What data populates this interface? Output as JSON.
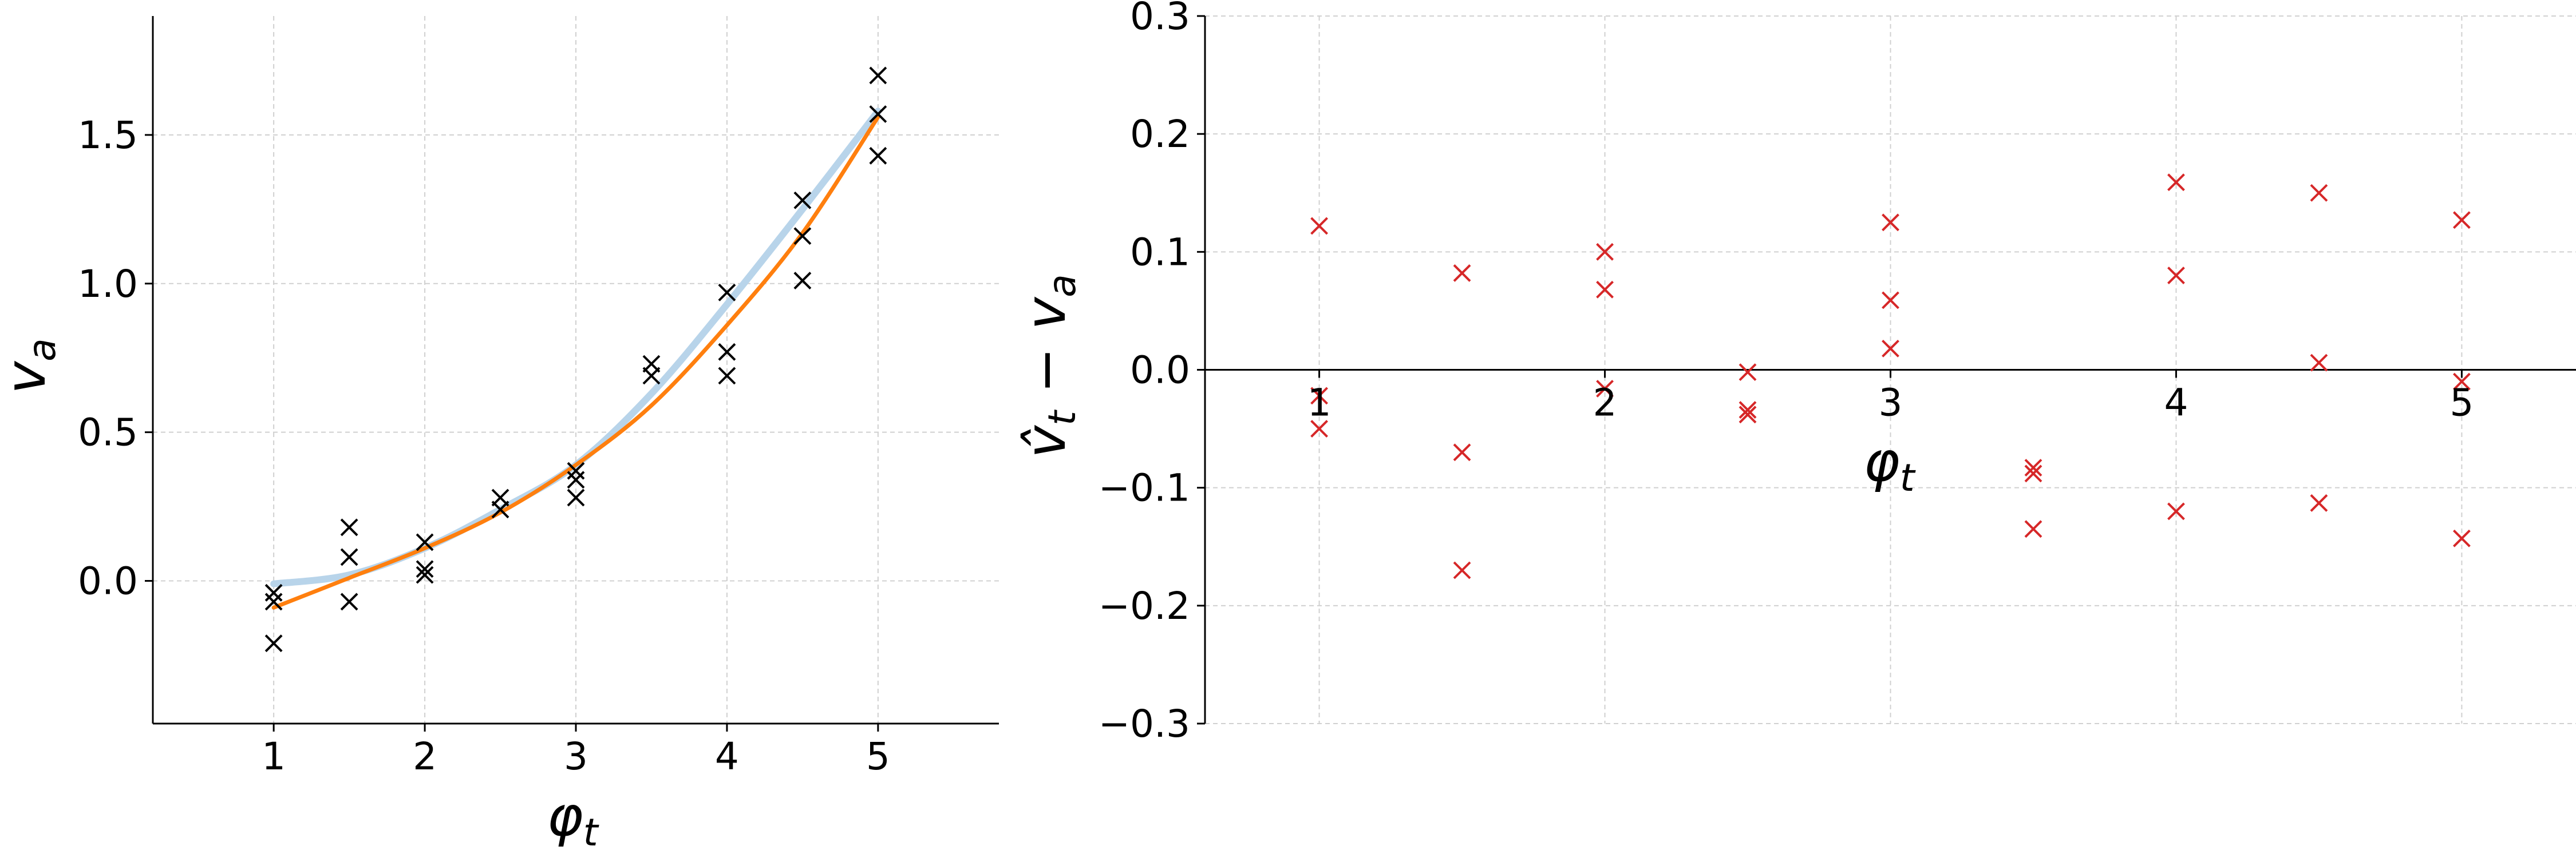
{
  "chart_data": [
    {
      "type": "scatter",
      "title": "",
      "xlabel": "φ_t",
      "ylabel": "v_a",
      "xlim": [
        0.2,
        5.8
      ],
      "ylim": [
        -0.48,
        1.9
      ],
      "xticks": [
        1,
        2,
        3,
        4,
        5
      ],
      "xtick_labels": [
        "1",
        "2",
        "3",
        "4",
        "5"
      ],
      "yticks": [
        0.0,
        0.5,
        1.0,
        1.5
      ],
      "ytick_labels": [
        "0.0",
        "0.5",
        "1.0",
        "1.5"
      ],
      "grid": true,
      "points": {
        "marker": "x",
        "color": "#000000",
        "x": [
          1,
          1,
          1,
          1.5,
          1.5,
          1.5,
          2,
          2,
          2,
          2.5,
          2.5,
          3,
          3,
          3,
          3.5,
          3.5,
          4,
          4,
          4,
          4.5,
          4.5,
          4.5,
          5,
          5,
          5
        ],
        "y": [
          -0.04,
          -0.07,
          -0.21,
          0.18,
          0.08,
          -0.07,
          0.13,
          0.04,
          0.02,
          0.28,
          0.24,
          0.37,
          0.34,
          0.28,
          0.73,
          0.69,
          0.97,
          0.77,
          0.69,
          1.28,
          1.16,
          1.01,
          1.7,
          1.57,
          1.43
        ]
      },
      "series": [
        {
          "color": "#b8d4ea",
          "x": [
            1,
            1.5,
            2,
            2.5,
            3,
            3.5,
            4,
            4.5,
            5
          ],
          "y": [
            -0.01,
            0.02,
            0.11,
            0.24,
            0.39,
            0.63,
            0.93,
            1.25,
            1.58
          ]
        },
        {
          "color": "#ff7f0e",
          "x": [
            1,
            1.5,
            2,
            2.5,
            3,
            3.5,
            4,
            4.5,
            5
          ],
          "y": [
            -0.09,
            0.01,
            0.11,
            0.23,
            0.39,
            0.59,
            0.86,
            1.17,
            1.56
          ]
        }
      ]
    },
    {
      "type": "scatter",
      "title": "",
      "xlabel": "φ_t",
      "ylabel": "v̂_t − v_a",
      "xlim": [
        0.6,
        5.4
      ],
      "ylim": [
        -0.3,
        0.3
      ],
      "xticks": [
        1,
        2,
        3,
        4,
        5
      ],
      "xtick_labels": [
        "1",
        "2",
        "3",
        "4",
        "5"
      ],
      "yticks": [
        -0.3,
        -0.2,
        -0.1,
        0.0,
        0.1,
        0.2,
        0.3
      ],
      "ytick_labels": [
        "−0.3",
        "−0.2",
        "−0.1",
        "0.0",
        "0.1",
        "0.2",
        "0.3"
      ],
      "grid": true,
      "zero_line": true,
      "points": {
        "marker": "x",
        "color": "#d62728",
        "x": [
          1,
          1,
          1,
          1.5,
          1.5,
          1.5,
          2,
          2,
          2,
          2.5,
          2.5,
          2.5,
          3,
          3,
          3,
          3.5,
          3.5,
          3.5,
          4,
          4,
          4,
          4.5,
          4.5,
          4.5,
          5,
          5,
          5
        ],
        "y": [
          0.122,
          -0.022,
          -0.05,
          0.082,
          -0.07,
          -0.17,
          0.1,
          0.068,
          -0.016,
          -0.002,
          -0.034,
          -0.038,
          0.125,
          0.059,
          0.018,
          -0.083,
          -0.088,
          -0.135,
          0.159,
          0.08,
          -0.12,
          0.15,
          0.006,
          -0.113,
          0.127,
          -0.01,
          -0.143
        ]
      }
    }
  ]
}
